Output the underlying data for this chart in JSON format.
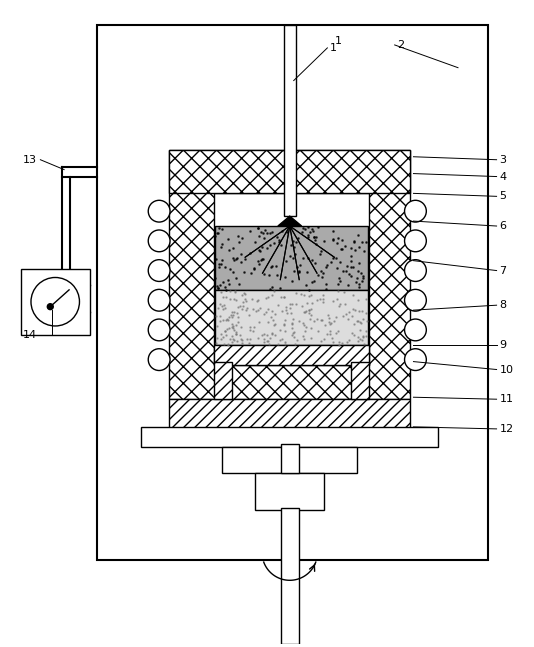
{
  "fig_width": 5.34,
  "fig_height": 6.47,
  "dpi": 100,
  "line_color": "#000000",
  "bg_color": "#ffffff"
}
